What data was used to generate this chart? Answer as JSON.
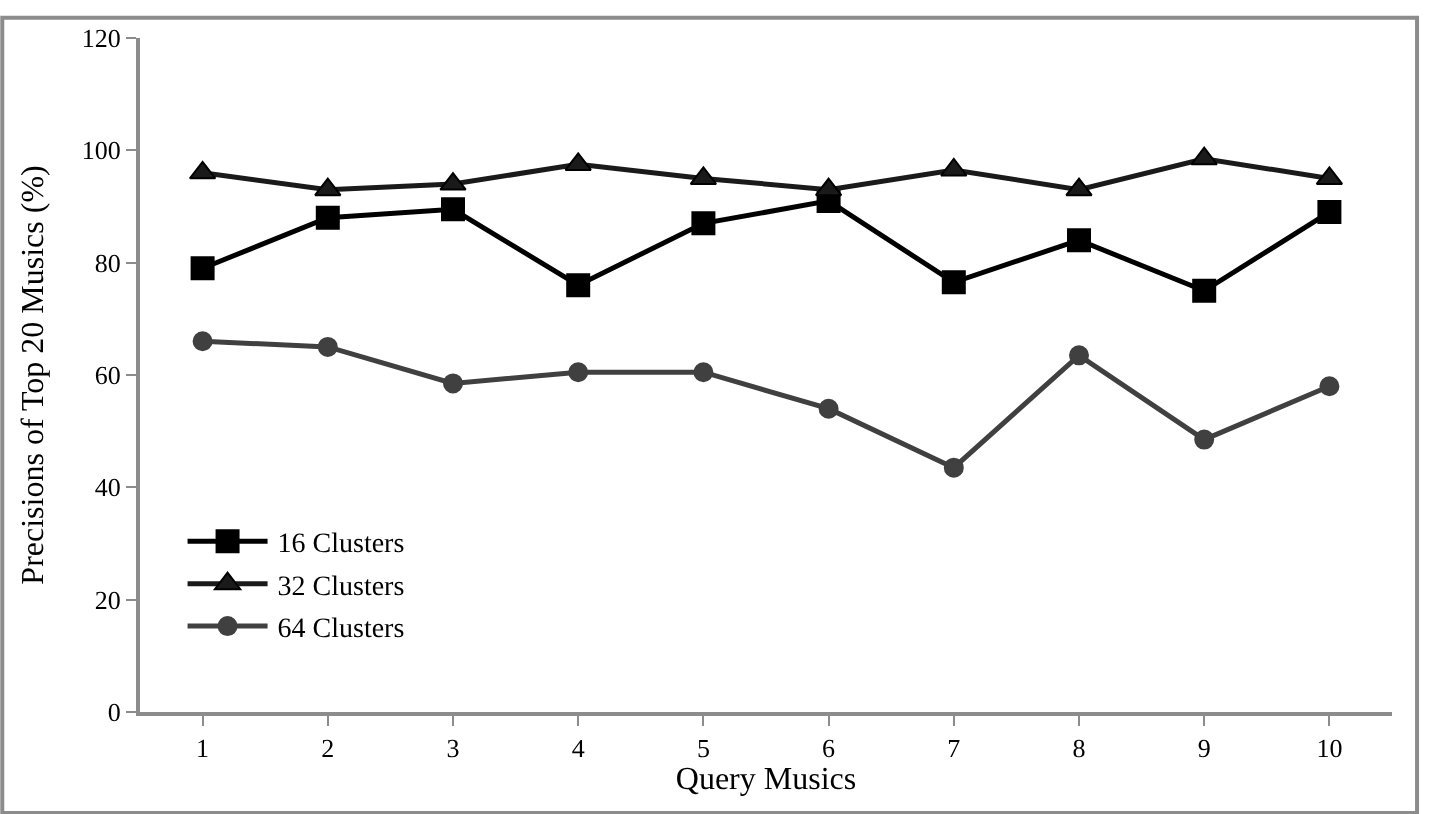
{
  "chart_data": {
    "type": "line",
    "xlabel": "Query Musics",
    "ylabel": "Precisions of Top 20 Musics (%)",
    "categories": [
      "1",
      "2",
      "3",
      "4",
      "5",
      "6",
      "7",
      "8",
      "9",
      "10"
    ],
    "series": [
      {
        "name": "16 Clusters",
        "color": "#000000",
        "marker": "square",
        "values": [
          79,
          88,
          89.5,
          76,
          87,
          91,
          76.5,
          84,
          75,
          89
        ]
      },
      {
        "name": "32 Clusters",
        "color": "#1a1a1a",
        "marker": "triangle",
        "values": [
          96,
          93,
          94,
          97.5,
          95,
          93,
          96.5,
          93,
          98.5,
          95
        ]
      },
      {
        "name": "64 Clusters",
        "color": "#404040",
        "marker": "circle",
        "values": [
          66,
          65,
          58.5,
          60.5,
          60.5,
          54,
          43.5,
          63.5,
          48.5,
          58
        ]
      }
    ],
    "ylim": [
      0,
      120
    ],
    "yticks": [
      0,
      20,
      40,
      60,
      80,
      100,
      120
    ],
    "legend": "bottom left",
    "line_style": "solid"
  }
}
